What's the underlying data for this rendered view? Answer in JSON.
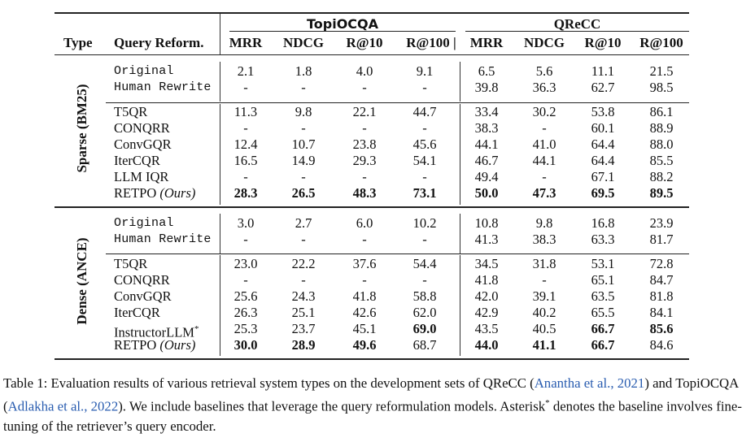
{
  "header": {
    "type": "Type",
    "query_reform": "Query Reform.",
    "group_topi": "TopiOCQA",
    "group_qrecc": "QReCC",
    "metrics": [
      "MRR",
      "NDCG",
      "R@10",
      "R@100 |",
      "MRR",
      "NDCG",
      "R@10",
      "R@100"
    ]
  },
  "sections": [
    {
      "label": "Sparse (BM25)",
      "rows": [
        {
          "name": "Original",
          "mono": true,
          "values": [
            "2.1",
            "1.8",
            "4.0",
            "9.1",
            "6.5",
            "5.6",
            "11.1",
            "21.5"
          ],
          "bold": []
        },
        {
          "name": "Human Rewrite",
          "mono": true,
          "values": [
            "-",
            "-",
            "-",
            "-",
            "39.8",
            "36.3",
            "62.7",
            "98.5"
          ],
          "bold": []
        },
        {
          "name": "T5QR",
          "values": [
            "11.3",
            "9.8",
            "22.1",
            "44.7",
            "33.4",
            "30.2",
            "53.8",
            "86.1"
          ],
          "bold": []
        },
        {
          "name": "CONQRR",
          "values": [
            "-",
            "-",
            "-",
            "-",
            "38.3",
            "-",
            "60.1",
            "88.9"
          ],
          "bold": []
        },
        {
          "name": "ConvGQR",
          "values": [
            "12.4",
            "10.7",
            "23.8",
            "45.6",
            "44.1",
            "41.0",
            "64.4",
            "88.0"
          ],
          "bold": []
        },
        {
          "name": "IterCQR",
          "values": [
            "16.5",
            "14.9",
            "29.3",
            "54.1",
            "46.7",
            "44.1",
            "64.4",
            "85.5"
          ],
          "bold": []
        },
        {
          "name": "LLM IQR",
          "values": [
            "-",
            "-",
            "-",
            "-",
            "49.4",
            "-",
            "67.1",
            "88.2"
          ],
          "bold": []
        },
        {
          "name": "RETPO",
          "name_suffix": "(Ours)",
          "retpo": true,
          "values": [
            "28.3",
            "26.5",
            "48.3",
            "73.1",
            "50.0",
            "47.3",
            "69.5",
            "89.5"
          ],
          "bold": [
            0,
            1,
            2,
            3,
            4,
            5,
            6,
            7
          ]
        }
      ]
    },
    {
      "label": "Dense (ANCE)",
      "rows": [
        {
          "name": "Original",
          "mono": true,
          "values": [
            "3.0",
            "2.7",
            "6.0",
            "10.2",
            "10.8",
            "9.8",
            "16.8",
            "23.9"
          ],
          "bold": []
        },
        {
          "name": "Human Rewrite",
          "mono": true,
          "values": [
            "-",
            "-",
            "-",
            "-",
            "41.3",
            "38.3",
            "63.3",
            "81.7"
          ],
          "bold": []
        },
        {
          "name": "T5QR",
          "values": [
            "23.0",
            "22.2",
            "37.6",
            "54.4",
            "34.5",
            "31.8",
            "53.1",
            "72.8"
          ],
          "bold": []
        },
        {
          "name": "CONQRR",
          "values": [
            "-",
            "-",
            "-",
            "-",
            "41.8",
            "-",
            "65.1",
            "84.7"
          ],
          "bold": []
        },
        {
          "name": "ConvGQR",
          "values": [
            "25.6",
            "24.3",
            "41.8",
            "58.8",
            "42.0",
            "39.1",
            "63.5",
            "81.8"
          ],
          "bold": []
        },
        {
          "name": "IterCQR",
          "values": [
            "26.3",
            "25.1",
            "42.6",
            "62.0",
            "42.9",
            "40.2",
            "65.5",
            "84.1"
          ],
          "bold": []
        },
        {
          "name": "InstructorLLM",
          "name_sup": "*",
          "values": [
            "25.3",
            "23.7",
            "45.1",
            "69.0",
            "43.5",
            "40.5",
            "66.7",
            "85.6"
          ],
          "bold": [
            3,
            6,
            7
          ]
        },
        {
          "name": "RETPO",
          "name_suffix": "(Ours)",
          "retpo": true,
          "values": [
            "30.0",
            "28.9",
            "49.6",
            "68.7",
            "44.0",
            "41.1",
            "66.7",
            "84.6"
          ],
          "bold": [
            0,
            1,
            2,
            4,
            5,
            6
          ]
        }
      ]
    }
  ],
  "caption": {
    "part1": "Table 1: Evaluation results of various retrieval system types on the development sets of QReCC (",
    "cite1": "Anantha et al., 2021",
    "part2": ") and TopiOCQA (",
    "cite2": "Adlakha et al., 2022",
    "part3": "). We include baselines that leverage the query reformulation models. Asterisk",
    "sup": "*",
    "part4": " denotes the baseline involves fine-tuning of the retriever’s query encoder."
  }
}
